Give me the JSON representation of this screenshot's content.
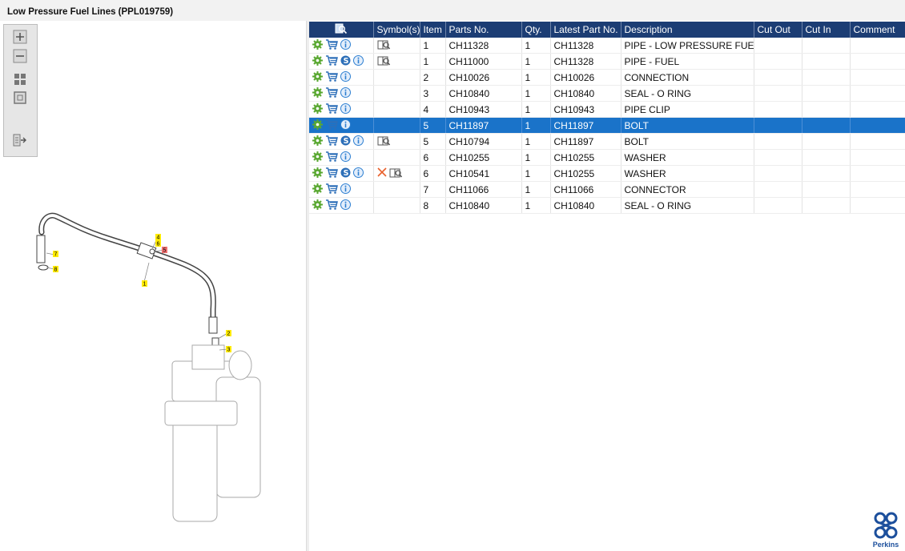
{
  "window": {
    "title": "Low Pressure Fuel Lines (PPL019759)"
  },
  "toolbar": {
    "buttons": [
      {
        "name": "zoom-in-icon"
      },
      {
        "name": "zoom-out-icon"
      },
      {
        "name": "fit-all-icon"
      },
      {
        "name": "fit-window-icon"
      },
      {
        "name": "export-icon"
      }
    ]
  },
  "drawing": {
    "callouts": [
      "1",
      "2",
      "3",
      "4",
      "5",
      "6",
      "7",
      "8"
    ]
  },
  "table": {
    "columns": [
      "",
      "Symbol(s)",
      "Item",
      "Parts No.",
      "Qty.",
      "Latest Part No.",
      "Description",
      "Cut Out",
      "Cut In",
      "Comment"
    ],
    "rows": [
      {
        "icons": [
          "gear-icon",
          "cart-icon",
          "info-icon"
        ],
        "symbols": [
          "book-icon"
        ],
        "item": "1",
        "part_no": "CH11328",
        "qty": "1",
        "latest": "CH11328",
        "desc": "PIPE - LOW PRESSURE FUEL",
        "cut_out": "",
        "cut_in": "",
        "comment": "",
        "selected": false
      },
      {
        "icons": [
          "gear-icon",
          "cart-icon",
          "s-icon",
          "info-icon"
        ],
        "symbols": [
          "book-icon"
        ],
        "item": "1",
        "part_no": "CH11000",
        "qty": "1",
        "latest": "CH11328",
        "desc": "PIPE - FUEL",
        "cut_out": "",
        "cut_in": "",
        "comment": "",
        "selected": false
      },
      {
        "icons": [
          "gear-icon",
          "cart-icon",
          "info-icon"
        ],
        "symbols": [],
        "item": "2",
        "part_no": "CH10026",
        "qty": "1",
        "latest": "CH10026",
        "desc": "CONNECTION",
        "cut_out": "",
        "cut_in": "",
        "comment": "",
        "selected": false
      },
      {
        "icons": [
          "gear-icon",
          "cart-icon",
          "info-icon"
        ],
        "symbols": [],
        "item": "3",
        "part_no": "CH10840",
        "qty": "1",
        "latest": "CH10840",
        "desc": "SEAL - O RING",
        "cut_out": "",
        "cut_in": "",
        "comment": "",
        "selected": false
      },
      {
        "icons": [
          "gear-icon",
          "cart-icon",
          "info-icon"
        ],
        "symbols": [],
        "item": "4",
        "part_no": "CH10943",
        "qty": "1",
        "latest": "CH10943",
        "desc": "PIPE CLIP",
        "cut_out": "",
        "cut_in": "",
        "comment": "",
        "selected": false
      },
      {
        "icons": [
          "gear-icon",
          "cart-icon",
          "info-icon"
        ],
        "symbols": [],
        "item": "5",
        "part_no": "CH11897",
        "qty": "1",
        "latest": "CH11897",
        "desc": "BOLT",
        "cut_out": "",
        "cut_in": "",
        "comment": "",
        "selected": true
      },
      {
        "icons": [
          "gear-icon",
          "cart-icon",
          "s-icon",
          "info-icon"
        ],
        "symbols": [
          "book-icon"
        ],
        "item": "5",
        "part_no": "CH10794",
        "qty": "1",
        "latest": "CH11897",
        "desc": "BOLT",
        "cut_out": "",
        "cut_in": "",
        "comment": "",
        "selected": false
      },
      {
        "icons": [
          "gear-icon",
          "cart-icon",
          "info-icon"
        ],
        "symbols": [],
        "item": "6",
        "part_no": "CH10255",
        "qty": "1",
        "latest": "CH10255",
        "desc": "WASHER",
        "cut_out": "",
        "cut_in": "",
        "comment": "",
        "selected": false
      },
      {
        "icons": [
          "gear-icon",
          "cart-icon",
          "s-icon",
          "info-icon"
        ],
        "symbols": [
          "x-icon",
          "book-icon"
        ],
        "item": "6",
        "part_no": "CH10541",
        "qty": "1",
        "latest": "CH10255",
        "desc": "WASHER",
        "cut_out": "",
        "cut_in": "",
        "comment": "",
        "selected": false
      },
      {
        "icons": [
          "gear-icon",
          "cart-icon",
          "info-icon"
        ],
        "symbols": [],
        "item": "7",
        "part_no": "CH11066",
        "qty": "1",
        "latest": "CH11066",
        "desc": "CONNECTOR",
        "cut_out": "",
        "cut_in": "",
        "comment": "",
        "selected": false
      },
      {
        "icons": [
          "gear-icon",
          "cart-icon",
          "info-icon"
        ],
        "symbols": [],
        "item": "8",
        "part_no": "CH10840",
        "qty": "1",
        "latest": "CH10840",
        "desc": "SEAL - O RING",
        "cut_out": "",
        "cut_in": "",
        "comment": "",
        "selected": false
      }
    ]
  },
  "brand": {
    "logo_text": "Perkins",
    "color": "#1c4f9c"
  },
  "colors": {
    "header": "#1c3d74",
    "selected": "#1a73c9",
    "gear": "#5aa832",
    "cart": "#2d6fb8",
    "info": "#2d7fd1"
  }
}
